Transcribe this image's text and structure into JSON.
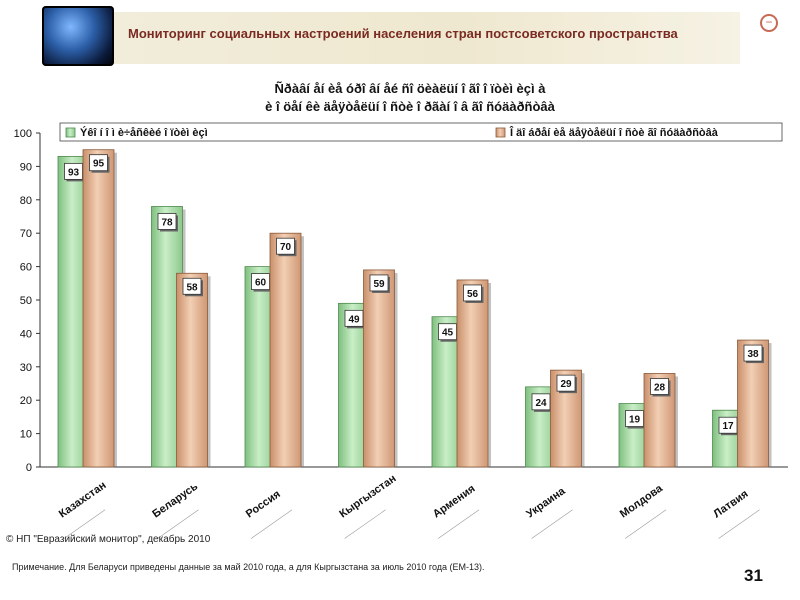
{
  "header": {
    "title": "Мониторинг социальных настроений населения стран постсоветского пространства"
  },
  "footer": {
    "source": "© НП \"Евразийский монитор\", декабрь 2010",
    "note": "Примечание. Для Беларуси приведены данные за май 2010 года, а для Кыргызстана за июль 2010 года (ЕМ-13).",
    "page_number": "31"
  },
  "colors": {
    "series1": "#a9d8a8",
    "series2": "#e2b08e",
    "header_text": "#7a2a22"
  },
  "chart_data": {
    "type": "bar",
    "title": [
      "Ñðàâí åí èå óðî âí åé ñî öèàëüí î ãî î ïòèì èçì à",
      "è î öåí êè äåÿòåëüí î ñòè î ðãàí î â ãî ñóäàðñòâà"
    ],
    "categories": [
      "Казахстан",
      "Беларусь",
      "Россия",
      "Кыргызстан",
      "Армения",
      "Украина",
      "Молдова",
      "Латвия"
    ],
    "series": [
      {
        "name": "Ýêî í î ì è÷åñêèé î ïòèì èçì",
        "values": [
          93,
          78,
          60,
          49,
          45,
          24,
          19,
          17
        ]
      },
      {
        "name": "Î äî áðåí èå äåÿòåëüí î ñòè ãî ñóäàðñòâà",
        "values": [
          95,
          58,
          70,
          59,
          56,
          29,
          28,
          38
        ]
      }
    ],
    "y_ticks": [
      "0",
      "10",
      "20",
      "30",
      "40",
      "50",
      "60",
      "70",
      "80",
      "90",
      "100"
    ],
    "ylim": [
      0,
      100
    ],
    "legend": "top",
    "grid": false
  }
}
